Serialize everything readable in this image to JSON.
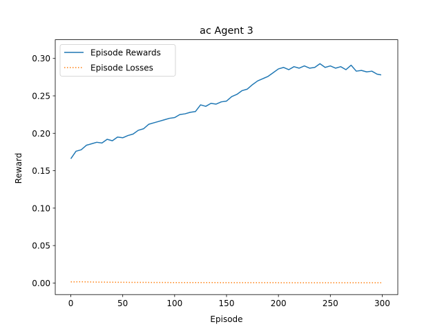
{
  "chart_data": {
    "type": "line",
    "title": "ac Agent 3",
    "xlabel": "Episode",
    "ylabel": "Reward",
    "xlim": [
      -15,
      315
    ],
    "ylim": [
      -0.0155,
      0.325
    ],
    "xticks": [
      0,
      50,
      100,
      150,
      200,
      250,
      300
    ],
    "yticks": [
      0.0,
      0.05,
      0.1,
      0.15,
      0.2,
      0.25,
      0.3
    ],
    "ytick_labels": [
      "0.00",
      "0.05",
      "0.10",
      "0.15",
      "0.20",
      "0.25",
      "0.30"
    ],
    "grid": false,
    "legend_position": "top-left",
    "series": [
      {
        "name": "Episode Rewards",
        "color": "#1f77b4",
        "style": "solid",
        "x": [
          0,
          5,
          10,
          15,
          20,
          25,
          30,
          35,
          40,
          45,
          50,
          55,
          60,
          65,
          70,
          75,
          80,
          85,
          90,
          95,
          100,
          105,
          110,
          115,
          120,
          125,
          130,
          135,
          140,
          145,
          150,
          155,
          160,
          165,
          170,
          175,
          180,
          185,
          190,
          195,
          200,
          205,
          210,
          215,
          220,
          225,
          230,
          235,
          240,
          245,
          250,
          255,
          260,
          265,
          270,
          275,
          280,
          285,
          290,
          295,
          299
        ],
        "values": [
          0.166,
          0.176,
          0.178,
          0.184,
          0.186,
          0.188,
          0.187,
          0.192,
          0.19,
          0.195,
          0.194,
          0.197,
          0.199,
          0.204,
          0.206,
          0.212,
          0.214,
          0.216,
          0.218,
          0.22,
          0.221,
          0.225,
          0.226,
          0.228,
          0.229,
          0.238,
          0.236,
          0.24,
          0.239,
          0.242,
          0.243,
          0.249,
          0.252,
          0.257,
          0.259,
          0.265,
          0.27,
          0.273,
          0.276,
          0.281,
          0.286,
          0.288,
          0.285,
          0.289,
          0.287,
          0.29,
          0.287,
          0.288,
          0.293,
          0.288,
          0.29,
          0.287,
          0.289,
          0.285,
          0.291,
          0.283,
          0.284,
          0.282,
          0.283,
          0.279,
          0.278
        ]
      },
      {
        "name": "Episode Losses",
        "color": "#ff7f0e",
        "style": "dotted",
        "x": [
          0,
          10,
          25,
          50,
          100,
          150,
          200,
          250,
          299
        ],
        "values": [
          0.0015,
          0.0016,
          0.0012,
          0.0009,
          0.0006,
          0.0005,
          0.0004,
          0.0004,
          0.0004
        ]
      }
    ]
  }
}
